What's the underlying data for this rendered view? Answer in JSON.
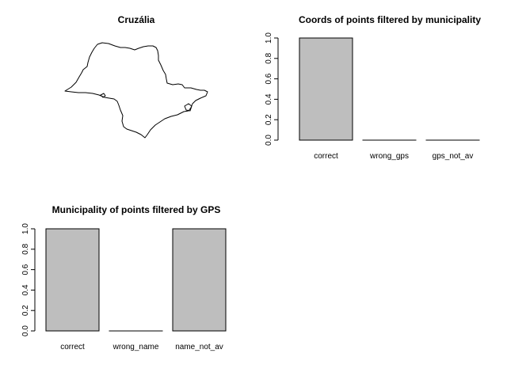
{
  "chart_data": [
    {
      "type": "other",
      "kind": "map-outline",
      "title": "Cruzália"
    },
    {
      "type": "bar",
      "title": "Coords of points filtered by municipality",
      "categories": [
        "correct",
        "wrong_gps",
        "gps_not_av"
      ],
      "values": [
        1.0,
        0.0,
        0.0
      ],
      "yticks": [
        "0.0",
        "0.2",
        "0.4",
        "0.6",
        "0.8",
        "1.0"
      ],
      "ylim": [
        0,
        1
      ],
      "bar_color": "#bebebe"
    },
    {
      "type": "bar",
      "title": "Municipality of points filtered by GPS",
      "categories": [
        "correct",
        "wrong_name",
        "name_not_av"
      ],
      "values": [
        1.0,
        0.0,
        1.0
      ],
      "yticks": [
        "0.0",
        "0.2",
        "0.4",
        "0.6",
        "0.8",
        "1.0"
      ],
      "ylim": [
        0,
        1
      ],
      "bar_color": "#bebebe"
    }
  ]
}
